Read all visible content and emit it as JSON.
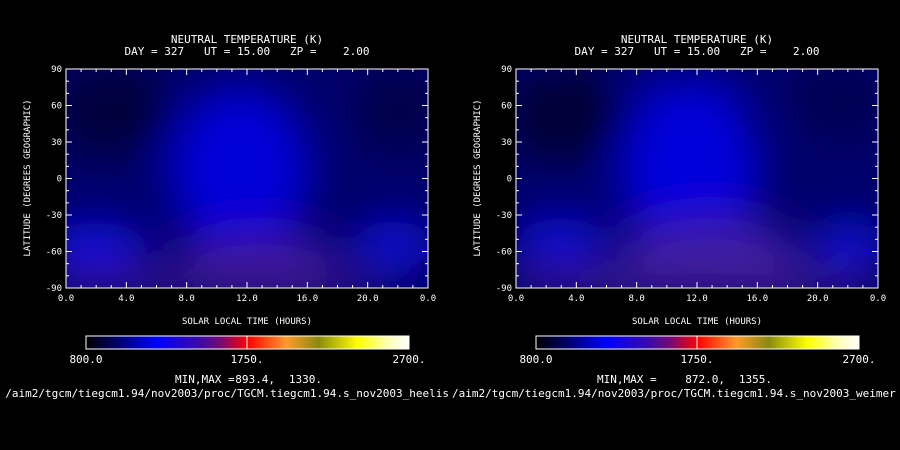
{
  "colors": {
    "background": "#000000",
    "foreground": "#ffffff",
    "colormap": [
      "#000000",
      "#00007a",
      "#0000ff",
      "#3a0aa8",
      "#8b0a6e",
      "#ff0000",
      "#ff9a2a",
      "#9a9a1a",
      "#ffff00",
      "#ffffcc",
      "#ffffff"
    ]
  },
  "chart_data": [
    {
      "type": "heatmap",
      "title": "NEUTRAL TEMPERATURE (K)",
      "subtitle": "DAY = 327   UT = 15.00   ZP =    2.00",
      "xlabel": "SOLAR LOCAL TIME (HOURS)",
      "ylabel": "LATITUDE (DEGREES GEOGRAPHIC)",
      "x_ticks": [
        "0.0",
        "4.0",
        "8.0",
        "12.0",
        "16.0",
        "20.0",
        "0.0"
      ],
      "y_ticks": [
        "-90",
        "-60",
        "-30",
        "0",
        "30",
        "60",
        "90"
      ],
      "xlim": [
        0,
        24
      ],
      "ylim": [
        -90,
        90
      ],
      "colorbar": {
        "min_label": "800.0",
        "mid_label": "1750.",
        "max_label": "2700.",
        "range": [
          800,
          2700
        ]
      },
      "min_max_label": "MIN,MAX =",
      "min_value": "893.4,",
      "max_value": "1330.",
      "path": "/aim2/tgcm/tiegcm1.94/nov2003/proc/TGCM.tiegcm1.94.s_nov2003_heelis"
    },
    {
      "type": "heatmap",
      "title": "NEUTRAL TEMPERATURE (K)",
      "subtitle": "DAY = 327   UT = 15.00   ZP =    2.00",
      "xlabel": "SOLAR LOCAL TIME (HOURS)",
      "ylabel": "LATITUDE (DEGREES GEOGRAPHIC)",
      "x_ticks": [
        "0.0",
        "4.0",
        "8.0",
        "12.0",
        "16.0",
        "20.0",
        "0.0"
      ],
      "y_ticks": [
        "-90",
        "-60",
        "-30",
        "0",
        "30",
        "60",
        "90"
      ],
      "xlim": [
        0,
        24
      ],
      "ylim": [
        -90,
        90
      ],
      "colorbar": {
        "min_label": "800.0",
        "mid_label": "1750.",
        "max_label": "2700.",
        "range": [
          800,
          2700
        ]
      },
      "min_max_label": "MIN,MAX =",
      "min_value": "872.0,",
      "max_value": "1355.",
      "path": "/aim2/tgcm/tiegcm1.94/nov2003/proc/TGCM.tiegcm1.94.s_nov2003_weimer"
    }
  ]
}
